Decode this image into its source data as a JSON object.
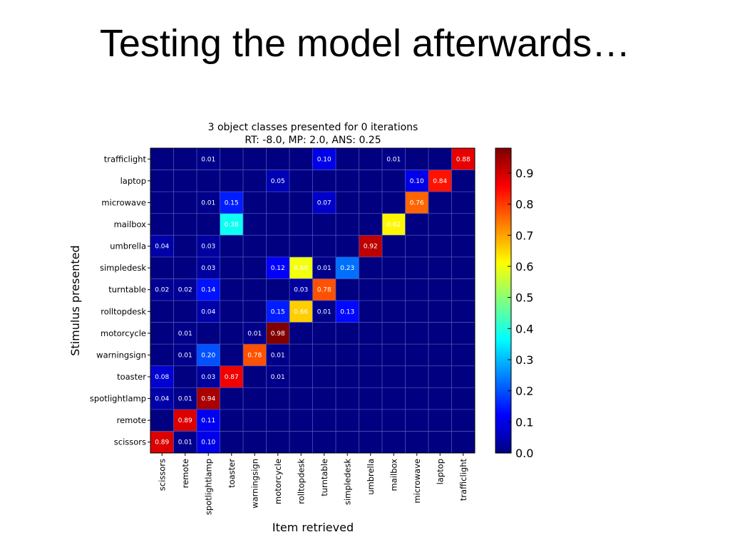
{
  "slide": {
    "title": "Testing the model afterwards…"
  },
  "chart_data": {
    "type": "heatmap",
    "title": "3 object classes presented for 0 iterations",
    "subtitle": "RT: -8.0, MP: 2.0, ANS: 0.25",
    "xlabel": "Item retrieved",
    "ylabel": "Stimulus presented",
    "x_categories": [
      "scissors",
      "remote",
      "spotlightlamp",
      "toaster",
      "warningsign",
      "motorcycle",
      "rolltopdesk",
      "turntable",
      "simpledesk",
      "umbrella",
      "mailbox",
      "microwave",
      "laptop",
      "trafficlight"
    ],
    "y_categories": [
      "trafficlight",
      "laptop",
      "microwave",
      "mailbox",
      "umbrella",
      "simpledesk",
      "turntable",
      "rolltopdesk",
      "motorcycle",
      "warningsign",
      "toaster",
      "spotlightlamp",
      "remote",
      "scissors"
    ],
    "values": [
      [
        0,
        0,
        0.01,
        0,
        0,
        0,
        0,
        0.1,
        0,
        0,
        0.01,
        0,
        0,
        0.88
      ],
      [
        0,
        0,
        0,
        0,
        0,
        0.05,
        0,
        0,
        0,
        0,
        0,
        0.1,
        0.84,
        0
      ],
      [
        0,
        0,
        0.01,
        0.15,
        0,
        0,
        0,
        0.07,
        0,
        0,
        0,
        0.76,
        0,
        0
      ],
      [
        0,
        0,
        0,
        0.38,
        0,
        0,
        0,
        0,
        0,
        0,
        0.62,
        0,
        0,
        0
      ],
      [
        0.04,
        0,
        0.03,
        0,
        0,
        0,
        0,
        0,
        0,
        0.92,
        0,
        0,
        0,
        0
      ],
      [
        0,
        0,
        0.03,
        0,
        0,
        0.12,
        0.6,
        0.01,
        0.23,
        0,
        0,
        0,
        0,
        0
      ],
      [
        0.02,
        0.02,
        0.14,
        0,
        0,
        0,
        0.03,
        0.78,
        0,
        0,
        0,
        0,
        0,
        0
      ],
      [
        0,
        0,
        0.04,
        0,
        0,
        0.15,
        0.66,
        0.01,
        0.13,
        0,
        0,
        0,
        0,
        0
      ],
      [
        0,
        0.01,
        0,
        0,
        0.01,
        0.98,
        0,
        0,
        0,
        0,
        0,
        0,
        0,
        0
      ],
      [
        0,
        0.01,
        0.2,
        0,
        0.78,
        0.01,
        0,
        0,
        0,
        0,
        0,
        0,
        0,
        0
      ],
      [
        0.08,
        0,
        0.03,
        0.87,
        0,
        0.01,
        0,
        0,
        0,
        0,
        0,
        0,
        0,
        0
      ],
      [
        0.04,
        0.01,
        0.94,
        0,
        0,
        0,
        0,
        0,
        0,
        0,
        0,
        0,
        0,
        0
      ],
      [
        0,
        0.89,
        0.11,
        0,
        0,
        0,
        0,
        0,
        0,
        0,
        0,
        0,
        0,
        0
      ],
      [
        0.89,
        0.01,
        0.1,
        0,
        0,
        0,
        0,
        0,
        0,
        0,
        0,
        0,
        0,
        0
      ]
    ],
    "value_range": [
      0,
      0.98
    ],
    "colormap": "jet",
    "colorbar": {
      "ticks": [
        0.0,
        0.1,
        0.2,
        0.3,
        0.4,
        0.5,
        0.6,
        0.7,
        0.8,
        0.9
      ],
      "tick_labels": [
        "0.0",
        "0.1",
        "0.2",
        "0.3",
        "0.4",
        "0.5",
        "0.6",
        "0.7",
        "0.8",
        "0.9"
      ]
    },
    "grid": true,
    "legend": "colorbar right"
  }
}
